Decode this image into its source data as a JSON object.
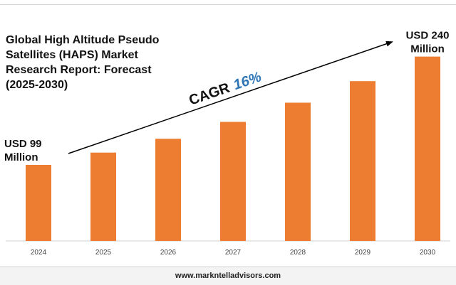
{
  "title_lines": [
    "Global High Altitude Pseudo",
    "Satellites (HAPS) Market",
    "Research Report: Forecast",
    "(2025-2030)"
  ],
  "cagr": {
    "label": "CAGR",
    "value": "16%"
  },
  "footer": {
    "website": "www.markntelladvisors.com"
  },
  "colors": {
    "bar": "#ED7D31",
    "cagr_value": "#2E75B6",
    "arrow": "#000000"
  },
  "chart_data": {
    "type": "bar",
    "title": "Global High Altitude Pseudo Satellites (HAPS) Market Research Report: Forecast (2025-2030)",
    "categories": [
      "2024",
      "2025",
      "2026",
      "2027",
      "2028",
      "2029",
      "2030"
    ],
    "values": [
      99,
      115,
      133,
      155,
      180,
      208,
      240
    ],
    "unit": "USD Million",
    "ylim": [
      0,
      260
    ],
    "grid": false,
    "annotations": [
      {
        "category": "2024",
        "lines": [
          "USD 99",
          "Million"
        ]
      },
      {
        "category": "2030",
        "lines": [
          "USD 240",
          "Million"
        ]
      }
    ]
  }
}
